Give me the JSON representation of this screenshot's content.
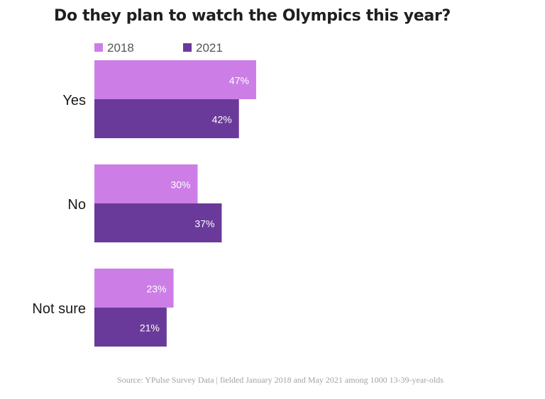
{
  "chart_data": {
    "type": "bar",
    "orientation": "horizontal",
    "title": "Do they plan to watch the Olympics this year?",
    "categories": [
      "Yes",
      "No",
      "Not sure"
    ],
    "series": [
      {
        "name": "2018",
        "color": "#cc7ee6",
        "values": [
          47,
          30,
          23
        ],
        "labels": [
          "47%",
          "30%",
          "23%"
        ]
      },
      {
        "name": "2021",
        "color": "#6a3a9a",
        "values": [
          42,
          37,
          21
        ],
        "labels": [
          "42%",
          "37%",
          "21%"
        ]
      }
    ],
    "xlim": [
      0,
      100
    ],
    "xlabel": "",
    "ylabel": "",
    "grid": false,
    "legend": "top-left",
    "source": "Source: YPulse Survey Data | fielded January 2018 and May 2021 among 1000 13-39-year-olds"
  }
}
